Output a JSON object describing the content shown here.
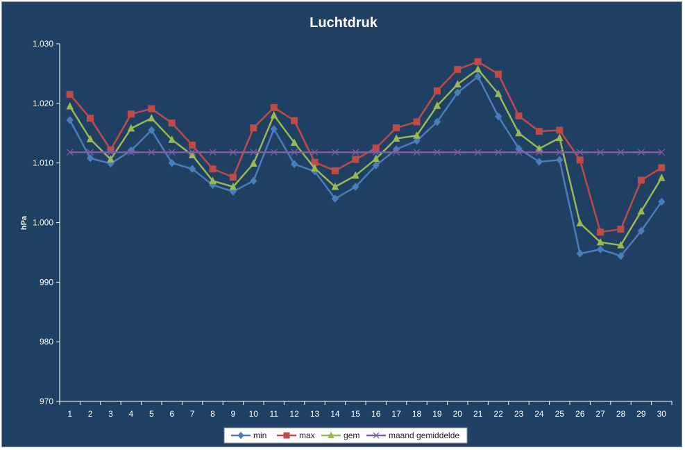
{
  "chart_data": {
    "type": "line",
    "title": "Luchtdruk",
    "xlabel": "",
    "ylabel": "hPa",
    "ylim": [
      970,
      1030
    ],
    "yticks": [
      970,
      980,
      990,
      1000,
      1010,
      1020,
      1030
    ],
    "ytick_labels": [
      "970",
      "980",
      "990",
      "1.000",
      "1.010",
      "1.020",
      "1.030"
    ],
    "categories": [
      "1",
      "2",
      "3",
      "4",
      "5",
      "6",
      "7",
      "8",
      "9",
      "10",
      "11",
      "12",
      "13",
      "14",
      "15",
      "16",
      "17",
      "18",
      "19",
      "20",
      "21",
      "22",
      "23",
      "24",
      "25",
      "26",
      "27",
      "28",
      "29",
      "30"
    ],
    "legend_position": "bottom",
    "grid": false,
    "series": [
      {
        "name": "min",
        "color": "#4a7ebb",
        "marker": "diamond",
        "values": [
          1017.2,
          1010.8,
          1009.9,
          1012.1,
          1015.5,
          1010.0,
          1009.0,
          1006.3,
          1005.2,
          1007.0,
          1015.7,
          1009.8,
          1008.6,
          1004.0,
          1006.0,
          1009.6,
          1012.3,
          1013.7,
          1016.9,
          1021.8,
          1024.5,
          1017.8,
          1012.4,
          1010.2,
          1010.5,
          994.8,
          995.5,
          994.4,
          998.6,
          1003.5
        ]
      },
      {
        "name": "max",
        "color": "#be4b48",
        "marker": "square",
        "values": [
          1021.5,
          1017.5,
          1012.2,
          1018.2,
          1019.1,
          1016.7,
          1013.0,
          1009.0,
          1007.6,
          1015.9,
          1019.3,
          1017.1,
          1010.1,
          1008.7,
          1010.6,
          1012.5,
          1015.9,
          1016.9,
          1022.1,
          1025.7,
          1027.0,
          1024.9,
          1017.9,
          1015.3,
          1015.5,
          1010.5,
          998.4,
          998.9,
          1007.1,
          1009.2
        ]
      },
      {
        "name": "gem",
        "color": "#98b954",
        "marker": "triangle",
        "values": [
          1019.5,
          1014.0,
          1010.6,
          1015.8,
          1017.5,
          1013.9,
          1011.3,
          1007.0,
          1006.0,
          1009.9,
          1018.0,
          1013.4,
          1009.1,
          1006.0,
          1007.9,
          1010.7,
          1014.1,
          1014.6,
          1019.6,
          1023.2,
          1025.7,
          1021.6,
          1015.0,
          1012.4,
          1014.2,
          999.9,
          996.7,
          996.2,
          1001.9,
          1007.5
        ]
      },
      {
        "name": "maand gemiddelde",
        "color": "#7d5fa0",
        "marker": "x",
        "values": [
          1011.8,
          1011.8,
          1011.8,
          1011.8,
          1011.8,
          1011.8,
          1011.8,
          1011.8,
          1011.8,
          1011.8,
          1011.8,
          1011.8,
          1011.8,
          1011.8,
          1011.8,
          1011.8,
          1011.8,
          1011.8,
          1011.8,
          1011.8,
          1011.8,
          1011.8,
          1011.8,
          1011.8,
          1011.8,
          1011.8,
          1011.8,
          1011.8,
          1011.8,
          1011.8
        ]
      }
    ]
  }
}
